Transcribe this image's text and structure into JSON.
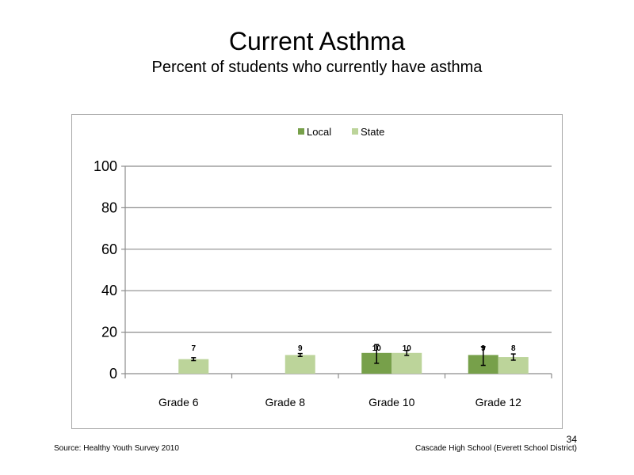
{
  "slide": {
    "title": "Current Asthma",
    "subtitle": "Percent of students who currently have asthma",
    "source": "Source: Healthy Youth Survey 2010",
    "school": "Cascade High School (Everett School District)",
    "page_number": "34"
  },
  "chart_data": {
    "type": "bar",
    "categories": [
      "Grade 6",
      "Grade 8",
      "Grade 10",
      "Grade 12"
    ],
    "series": [
      {
        "name": "Local",
        "color": "#77a04a",
        "values": [
          null,
          null,
          10,
          9
        ],
        "labels": [
          "",
          "",
          "10",
          "9"
        ],
        "err_low": [
          null,
          null,
          5,
          4
        ],
        "err_high": [
          null,
          null,
          14,
          13
        ]
      },
      {
        "name": "State",
        "color": "#bcd49a",
        "values": [
          7,
          9,
          10,
          8
        ],
        "labels": [
          "7",
          "9",
          "10",
          "8"
        ],
        "err_low": [
          6.3,
          8.3,
          8.8,
          6.5
        ],
        "err_high": [
          7.7,
          9.7,
          11.2,
          9.5
        ]
      }
    ],
    "ylim": [
      0,
      100
    ],
    "yticks": [
      0,
      20,
      40,
      60,
      80,
      100
    ],
    "gridlines": true,
    "legend_position": "top",
    "xlabel": "",
    "ylabel": ""
  }
}
